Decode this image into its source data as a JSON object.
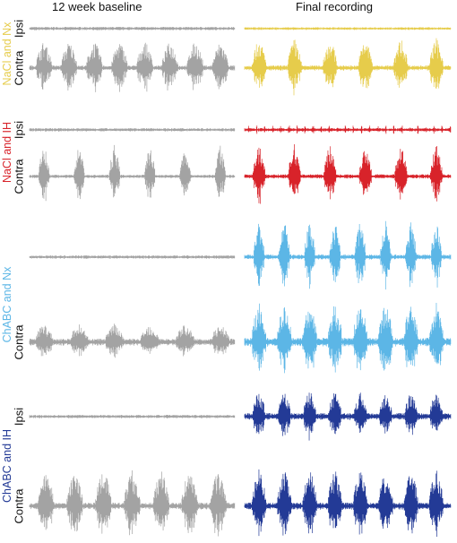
{
  "columns": {
    "baseline": "12 week baseline",
    "final": "Final recording"
  },
  "channels": {
    "ipsi": "Ipsi",
    "contra": "Contra"
  },
  "groups": [
    {
      "label": "NaCl and Nx",
      "color": "#e6cc4b"
    },
    {
      "label": "NaCl and IH",
      "color": "#d8232a"
    },
    {
      "label": "ChABC and Nx",
      "color": "#5cb6e6"
    },
    {
      "label": "ChABC and IH",
      "color": "#233a96"
    }
  ],
  "baseline_color": "#a3a3a3"
}
